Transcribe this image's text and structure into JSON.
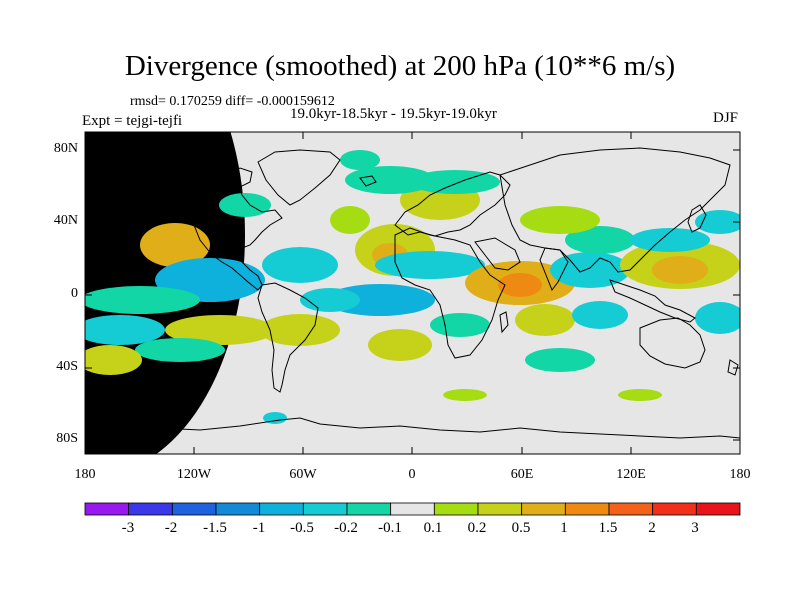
{
  "title": "Divergence (smoothed) at 200 hPa (10**6 m/s)",
  "stats": "rmsd= 0.170259 diff= -0.000159612",
  "period": "19.0kyr-18.5kyr - 19.5kyr-19.0kyr",
  "expt": "Expt = tejgi-tejfi",
  "season": "DJF",
  "lat_labels": [
    "80N",
    "40N",
    "0",
    "40S",
    "80S"
  ],
  "lon_labels": [
    "180",
    "120W",
    "60W",
    "0",
    "60E",
    "120E",
    "180"
  ],
  "colorbar": {
    "labels": [
      "-3",
      "-2",
      "-1.5",
      "-1",
      "-0.5",
      "-0.2",
      "-0.1",
      "0.1",
      "0.2",
      "0.5",
      "1",
      "1.5",
      "2",
      "3"
    ],
    "colors": [
      "#9a18f0",
      "#3a38e8",
      "#1e62e0",
      "#128ad8",
      "#0eb0dc",
      "#16ccd4",
      "#12d6a6",
      "#e6e6e6",
      "#a6dc12",
      "#c6d21a",
      "#dfae18",
      "#ee8a12",
      "#f4621a",
      "#f2301a",
      "#e8141a"
    ]
  },
  "anomaly_colors": {
    "neutral": "#e6e6e6",
    "neg_light": "#12d6a6",
    "neg_mid": "#16ccd4",
    "neg_strong": "#0eb0dc",
    "pos_light": "#a6dc12",
    "pos_mid": "#c6d21a",
    "pos_strong": "#dfae18",
    "pos_max": "#ee8a12"
  }
}
